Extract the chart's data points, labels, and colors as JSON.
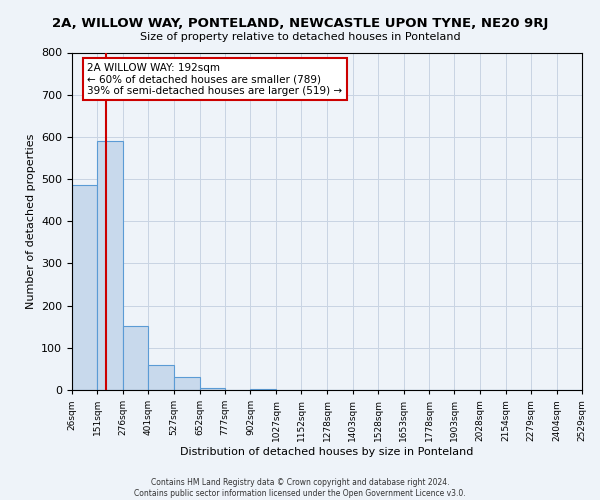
{
  "title": "2A, WILLOW WAY, PONTELAND, NEWCASTLE UPON TYNE, NE20 9RJ",
  "subtitle": "Size of property relative to detached houses in Ponteland",
  "xlabel": "Distribution of detached houses by size in Ponteland",
  "ylabel": "Number of detached properties",
  "bin_edges": [
    26,
    151,
    276,
    401,
    527,
    652,
    777,
    902,
    1027,
    1152,
    1278,
    1403,
    1528,
    1653,
    1778,
    1903,
    2028,
    2154,
    2279,
    2404,
    2529
  ],
  "bar_heights": [
    487,
    590,
    152,
    60,
    30,
    5,
    0,
    3,
    0,
    0,
    0,
    0,
    0,
    0,
    0,
    0,
    0,
    0,
    0,
    0
  ],
  "bar_color": "#c8d9ec",
  "bar_edge_color": "#5b9bd5",
  "bar_edge_width": 0.8,
  "red_line_x": 192,
  "red_line_color": "#cc0000",
  "ylim": [
    0,
    800
  ],
  "yticks": [
    0,
    100,
    200,
    300,
    400,
    500,
    600,
    700,
    800
  ],
  "annotation_line1": "2A WILLOW WAY: 192sqm",
  "annotation_line2": "← 60% of detached houses are smaller (789)",
  "annotation_line3": "39% of semi-detached houses are larger (519) →",
  "annotation_box_color": "#ffffff",
  "annotation_box_edge": "#cc0000",
  "background_color": "#eef3f9",
  "grid_color": "#c8d4e3",
  "footer_line1": "Contains HM Land Registry data © Crown copyright and database right 2024.",
  "footer_line2": "Contains public sector information licensed under the Open Government Licence v3.0."
}
